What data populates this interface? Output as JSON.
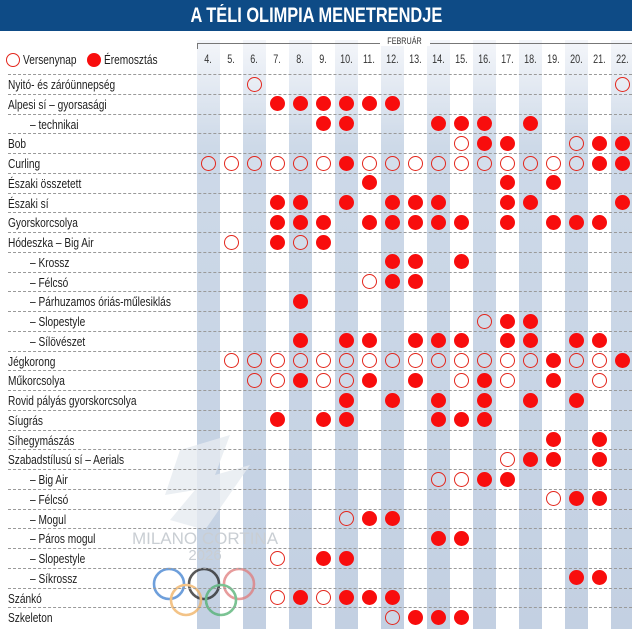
{
  "title": "A TÉLI OLIMPIA MENETRENDJE",
  "month": "FEBRUÁR",
  "legend": {
    "competition_day": "Versenynap",
    "medal_event": "Éremosztás"
  },
  "days": [
    "4.",
    "5.",
    "6.",
    "7.",
    "8.",
    "9.",
    "10.",
    "11.",
    "12.",
    "13.",
    "14.",
    "15.",
    "16.",
    "17.",
    "18.",
    "19.",
    "20.",
    "21.",
    "22."
  ],
  "day_numbers": [
    4,
    5,
    6,
    7,
    8,
    9,
    10,
    11,
    12,
    13,
    14,
    15,
    16,
    17,
    18,
    19,
    20,
    21,
    22
  ],
  "colors": {
    "header": "#0e4b86",
    "marker": "#f80d0d"
  },
  "watermark": {
    "text": "MILANO CORTINA",
    "year": "2026"
  },
  "events": [
    {
      "label": "Nyitó- és záróünnepség",
      "indent": false,
      "competition": [
        6,
        22
      ],
      "medal": []
    },
    {
      "label": "Alpesi sí – gyorsasági",
      "indent": false,
      "competition": [],
      "medal": [
        7,
        8,
        9,
        10,
        11,
        12
      ]
    },
    {
      "label": "– technikai",
      "indent": true,
      "competition": [],
      "medal": [
        9,
        10,
        14,
        15,
        16,
        18
      ]
    },
    {
      "label": "Bob",
      "indent": false,
      "competition": [
        15,
        20
      ],
      "medal": [
        16,
        17,
        21,
        22
      ]
    },
    {
      "label": "Curling",
      "indent": false,
      "competition": [
        4,
        5,
        6,
        7,
        8,
        9,
        11,
        12,
        13,
        14,
        15,
        16,
        17,
        18,
        19,
        20
      ],
      "medal": [
        10,
        21,
        22
      ]
    },
    {
      "label": "Északi összetett",
      "indent": false,
      "competition": [],
      "medal": [
        11,
        17,
        19
      ]
    },
    {
      "label": "Északi sí",
      "indent": false,
      "competition": [],
      "medal": [
        7,
        8,
        10,
        12,
        13,
        14,
        17,
        18,
        22
      ]
    },
    {
      "label": "Gyorskorcsolya",
      "indent": false,
      "competition": [],
      "medal": [
        7,
        8,
        9,
        11,
        12,
        13,
        14,
        15,
        17,
        19,
        20,
        21
      ]
    },
    {
      "label": "Hódeszka – Big Air",
      "indent": false,
      "competition": [
        5,
        8
      ],
      "medal": [
        7,
        9
      ]
    },
    {
      "label": "– Krossz",
      "indent": true,
      "competition": [],
      "medal": [
        12,
        13,
        15
      ]
    },
    {
      "label": "– Félcsó",
      "indent": true,
      "competition": [
        11
      ],
      "medal": [
        12,
        13
      ]
    },
    {
      "label": "– Párhuzamos óriás-műlesiklás",
      "indent": true,
      "competition": [],
      "medal": [
        8
      ]
    },
    {
      "label": "– Slopestyle",
      "indent": true,
      "competition": [
        16
      ],
      "medal": [
        17,
        18
      ]
    },
    {
      "label": "– Sílövészet",
      "indent": true,
      "competition": [],
      "medal": [
        8,
        10,
        11,
        13,
        14,
        15,
        17,
        18,
        20,
        21
      ]
    },
    {
      "label": "Jégkorong",
      "indent": false,
      "competition": [
        5,
        6,
        7,
        8,
        9,
        10,
        11,
        12,
        13,
        14,
        15,
        16,
        17,
        18,
        20,
        21
      ],
      "medal": [
        19,
        22
      ]
    },
    {
      "label": "Műkorcsolya",
      "indent": false,
      "competition": [
        6,
        7,
        9,
        10,
        15,
        17,
        21
      ],
      "medal": [
        8,
        11,
        13,
        16,
        19
      ]
    },
    {
      "label": "Rovid pályás gyorskorcsolya",
      "indent": false,
      "competition": [],
      "medal": [
        10,
        12,
        14,
        16,
        18,
        20
      ]
    },
    {
      "label": "Síugrás",
      "indent": false,
      "competition": [],
      "medal": [
        7,
        9,
        10,
        14,
        15,
        16
      ]
    },
    {
      "label": "Síhegymászás",
      "indent": false,
      "competition": [],
      "medal": [
        19,
        21
      ]
    },
    {
      "label": "Szabadstílusú sí – Aerials",
      "indent": false,
      "competition": [
        17
      ],
      "medal": [
        18,
        19,
        21
      ]
    },
    {
      "label": "– Big Air",
      "indent": true,
      "competition": [
        14,
        15
      ],
      "medal": [
        16,
        17
      ]
    },
    {
      "label": "– Félcsó",
      "indent": true,
      "competition": [
        19
      ],
      "medal": [
        20,
        21
      ]
    },
    {
      "label": "– Mogul",
      "indent": true,
      "competition": [
        10
      ],
      "medal": [
        11,
        12
      ]
    },
    {
      "label": "– Páros mogul",
      "indent": true,
      "competition": [],
      "medal": [
        14,
        15
      ]
    },
    {
      "label": "– Slopestyle",
      "indent": true,
      "competition": [
        7
      ],
      "medal": [
        9,
        10
      ]
    },
    {
      "label": "– Síkrossz",
      "indent": true,
      "competition": [],
      "medal": [
        20,
        21
      ]
    },
    {
      "label": "Szánkó",
      "indent": false,
      "competition": [
        7,
        9
      ],
      "medal": [
        8,
        10,
        11,
        12
      ]
    },
    {
      "label": "Szkeleton",
      "indent": false,
      "competition": [
        12
      ],
      "medal": [
        13,
        14,
        15
      ]
    }
  ]
}
